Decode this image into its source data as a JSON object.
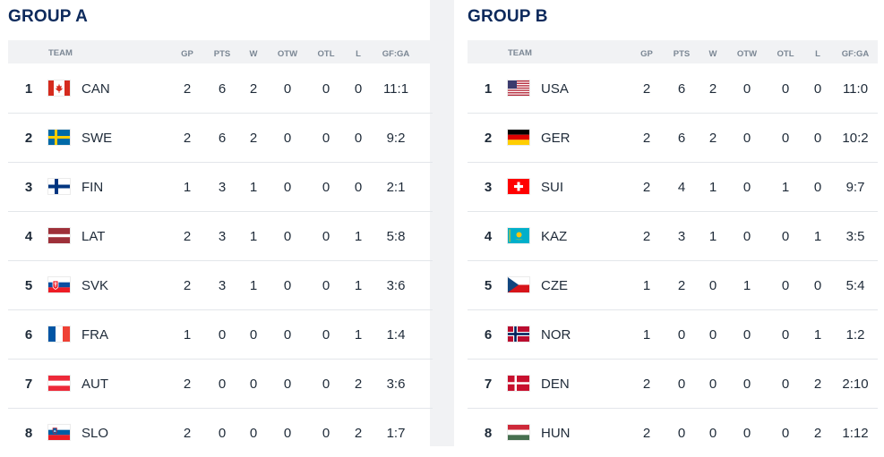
{
  "columns": {
    "team": "TEAM",
    "gp": "GP",
    "pts": "PTS",
    "w": "W",
    "otw": "OTW",
    "otl": "OTL",
    "l": "L",
    "gfga": "GF:GA"
  },
  "groups": [
    {
      "title": "GROUP A",
      "rows": [
        {
          "rank": "1",
          "flag": "canada-flag-icon",
          "code": "CAN",
          "gp": "2",
          "pts": "6",
          "w": "2",
          "otw": "0",
          "otl": "0",
          "l": "0",
          "gfga": "11:1"
        },
        {
          "rank": "2",
          "flag": "sweden-flag-icon",
          "code": "SWE",
          "gp": "2",
          "pts": "6",
          "w": "2",
          "otw": "0",
          "otl": "0",
          "l": "0",
          "gfga": "9:2"
        },
        {
          "rank": "3",
          "flag": "finland-flag-icon",
          "code": "FIN",
          "gp": "1",
          "pts": "3",
          "w": "1",
          "otw": "0",
          "otl": "0",
          "l": "0",
          "gfga": "2:1"
        },
        {
          "rank": "4",
          "flag": "latvia-flag-icon",
          "code": "LAT",
          "gp": "2",
          "pts": "3",
          "w": "1",
          "otw": "0",
          "otl": "0",
          "l": "1",
          "gfga": "5:8"
        },
        {
          "rank": "5",
          "flag": "slovakia-flag-icon",
          "code": "SVK",
          "gp": "2",
          "pts": "3",
          "w": "1",
          "otw": "0",
          "otl": "0",
          "l": "1",
          "gfga": "3:6"
        },
        {
          "rank": "6",
          "flag": "france-flag-icon",
          "code": "FRA",
          "gp": "1",
          "pts": "0",
          "w": "0",
          "otw": "0",
          "otl": "0",
          "l": "1",
          "gfga": "1:4"
        },
        {
          "rank": "7",
          "flag": "austria-flag-icon",
          "code": "AUT",
          "gp": "2",
          "pts": "0",
          "w": "0",
          "otw": "0",
          "otl": "0",
          "l": "2",
          "gfga": "3:6"
        },
        {
          "rank": "8",
          "flag": "slovenia-flag-icon",
          "code": "SLO",
          "gp": "2",
          "pts": "0",
          "w": "0",
          "otw": "0",
          "otl": "0",
          "l": "2",
          "gfga": "1:7"
        }
      ]
    },
    {
      "title": "GROUP B",
      "rows": [
        {
          "rank": "1",
          "flag": "usa-flag-icon",
          "code": "USA",
          "gp": "2",
          "pts": "6",
          "w": "2",
          "otw": "0",
          "otl": "0",
          "l": "0",
          "gfga": "11:0"
        },
        {
          "rank": "2",
          "flag": "germany-flag-icon",
          "code": "GER",
          "gp": "2",
          "pts": "6",
          "w": "2",
          "otw": "0",
          "otl": "0",
          "l": "0",
          "gfga": "10:2"
        },
        {
          "rank": "3",
          "flag": "switzerland-flag-icon",
          "code": "SUI",
          "gp": "2",
          "pts": "4",
          "w": "1",
          "otw": "0",
          "otl": "1",
          "l": "0",
          "gfga": "9:7"
        },
        {
          "rank": "4",
          "flag": "kazakhstan-flag-icon",
          "code": "KAZ",
          "gp": "2",
          "pts": "3",
          "w": "1",
          "otw": "0",
          "otl": "0",
          "l": "1",
          "gfga": "3:5"
        },
        {
          "rank": "5",
          "flag": "czechia-flag-icon",
          "code": "CZE",
          "gp": "1",
          "pts": "2",
          "w": "0",
          "otw": "1",
          "otl": "0",
          "l": "0",
          "gfga": "5:4"
        },
        {
          "rank": "6",
          "flag": "norway-flag-icon",
          "code": "NOR",
          "gp": "1",
          "pts": "0",
          "w": "0",
          "otw": "0",
          "otl": "0",
          "l": "1",
          "gfga": "1:2"
        },
        {
          "rank": "7",
          "flag": "denmark-flag-icon",
          "code": "DEN",
          "gp": "2",
          "pts": "0",
          "w": "0",
          "otw": "0",
          "otl": "0",
          "l": "2",
          "gfga": "2:10"
        },
        {
          "rank": "8",
          "flag": "hungary-flag-icon",
          "code": "HUN",
          "gp": "2",
          "pts": "0",
          "w": "0",
          "otw": "0",
          "otl": "0",
          "l": "2",
          "gfga": "1:12"
        }
      ]
    }
  ],
  "colors": {
    "title": "#0d2a5c",
    "header_bg": "#f1f2f4",
    "header_text": "#7b8794",
    "divider_bg": "#f1f2f4",
    "row_border": "#e3e6ea"
  }
}
